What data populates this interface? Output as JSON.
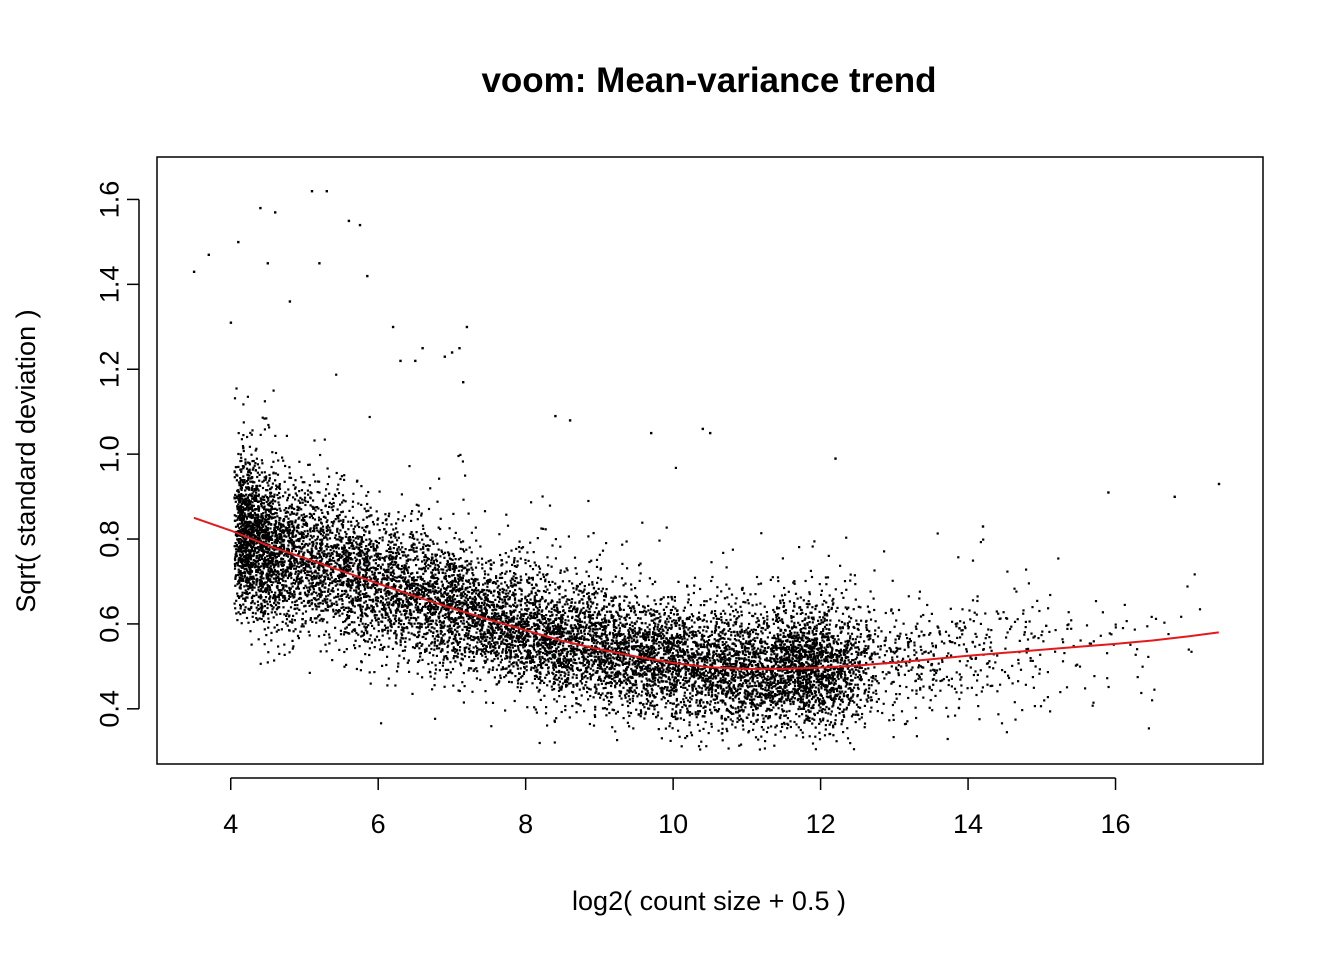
{
  "chart_data": {
    "type": "scatter",
    "title": "voom: Mean-variance trend",
    "xlabel": "log2( count size + 0.5 )",
    "ylabel": "Sqrt( standard deviation )",
    "xlim": [
      3.0,
      18.0
    ],
    "ylim": [
      0.27,
      1.7
    ],
    "x_ticks": [
      4,
      6,
      8,
      10,
      12,
      14,
      16
    ],
    "x_tick_labels": [
      "4",
      "6",
      "8",
      "10",
      "12",
      "14",
      "16"
    ],
    "y_ticks": [
      0.4,
      0.6,
      0.8,
      1.0,
      1.2,
      1.4,
      1.6
    ],
    "y_tick_labels": [
      "0.4",
      "0.6",
      "0.8",
      "1.0",
      "1.2",
      "1.4",
      "1.6"
    ],
    "grid": false,
    "colors": {
      "points": "#000000",
      "trend": "#e31a1c",
      "frame": "#000000"
    },
    "points_note_count_approx": 12000,
    "trend_line": {
      "name": "lowess",
      "x": [
        3.5,
        4.0,
        4.5,
        5.0,
        5.5,
        6.0,
        6.5,
        7.0,
        7.5,
        8.0,
        8.5,
        9.0,
        9.5,
        10.0,
        10.5,
        11.0,
        11.5,
        12.0,
        12.5,
        13.0,
        13.5,
        14.0,
        14.5,
        15.0,
        15.5,
        16.0,
        16.5,
        17.0,
        17.4
      ],
      "y": [
        0.85,
        0.82,
        0.785,
        0.755,
        0.725,
        0.695,
        0.665,
        0.637,
        0.61,
        0.585,
        0.56,
        0.54,
        0.523,
        0.508,
        0.498,
        0.494,
        0.494,
        0.497,
        0.502,
        0.509,
        0.517,
        0.525,
        0.532,
        0.539,
        0.546,
        0.553,
        0.561,
        0.571,
        0.58
      ]
    },
    "outliers": {
      "x": [
        3.5,
        3.7,
        4.0,
        4.1,
        4.4,
        4.5,
        4.6,
        4.8,
        5.1,
        5.2,
        5.3,
        5.6,
        5.75,
        5.85,
        6.2,
        6.3,
        6.5,
        6.6,
        6.9,
        7.0,
        7.1,
        7.2,
        7.15,
        8.4,
        8.6,
        9.7,
        10.4,
        10.5,
        12.2,
        14.2,
        15.9,
        16.8,
        17.4
      ],
      "y": [
        1.43,
        1.47,
        1.31,
        1.5,
        1.58,
        1.45,
        1.57,
        1.36,
        1.62,
        1.45,
        1.62,
        1.55,
        1.54,
        1.42,
        1.3,
        1.22,
        1.22,
        1.25,
        1.23,
        1.24,
        1.25,
        1.3,
        1.17,
        1.09,
        1.08,
        1.05,
        1.06,
        1.05,
        0.99,
        0.83,
        0.91,
        0.9,
        0.93
      ]
    }
  }
}
